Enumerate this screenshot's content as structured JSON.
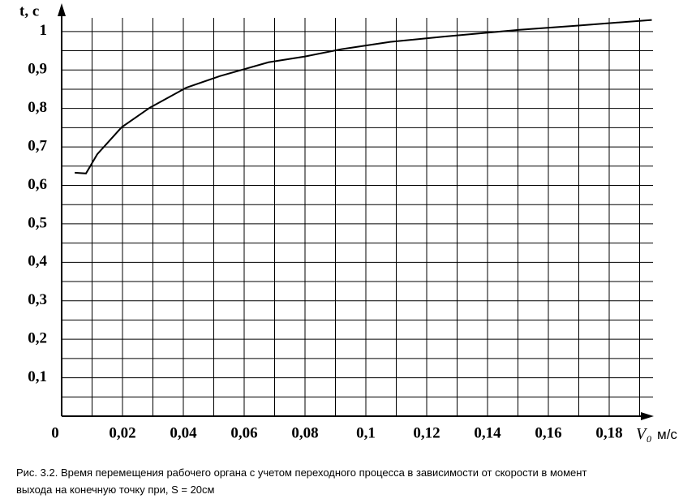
{
  "chart_data": {
    "type": "line",
    "y_label": "t, c",
    "x_label_symbol": "V",
    "x_label_subscript": "0",
    "x_label_unit": "м/с",
    "caption": [
      "Рис. 3.2. Время перемещения рабочего органа с учетом переходного процесса в зависимости от скорости в момент",
      "выхода на конечную точку при, S = 20см"
    ],
    "x": [
      0.0043,
      0.008,
      0.0117,
      0.0197,
      0.029,
      0.041,
      0.052,
      0.068,
      0.08,
      0.092,
      0.108,
      0.126,
      0.15,
      0.169,
      0.194
    ],
    "series": [
      {
        "color": "#000000",
        "values": [
          0.633,
          0.631,
          0.681,
          0.751,
          0.802,
          0.854,
          0.884,
          0.92,
          0.935,
          0.954,
          0.973,
          0.987,
          1.004,
          1.015,
          1.03
        ]
      }
    ],
    "xlim": [
      0,
      0.194
    ],
    "ylim": [
      0,
      1.065
    ],
    "xticks": [
      0,
      {
        "value": 0.02,
        "label": "0,02"
      },
      {
        "value": 0.04,
        "label": "0,04"
      },
      {
        "value": 0.06,
        "label": "0,06"
      },
      {
        "value": 0.08,
        "label": "0,08"
      },
      {
        "value": 0.1,
        "label": "0,1"
      },
      {
        "value": 0.12,
        "label": "0,12"
      },
      {
        "value": 0.14,
        "label": "0,14"
      },
      {
        "value": 0.16,
        "label": "0,16"
      },
      {
        "value": 0.18,
        "label": "0,18"
      }
    ],
    "yticks": [
      {
        "value": 0.1,
        "label": "0,1"
      },
      {
        "value": 0.2,
        "label": "0,2"
      },
      {
        "value": 0.3,
        "label": "0,3"
      },
      {
        "value": 0.4,
        "label": "0,4"
      },
      {
        "value": 0.5,
        "label": "0,5"
      },
      {
        "value": 0.6,
        "label": "0,6"
      },
      {
        "value": 0.7,
        "label": "0,7"
      },
      {
        "value": 0.8,
        "label": "0,8"
      },
      {
        "value": 0.9,
        "label": "0,9"
      },
      1
    ],
    "x_grid": [
      0.01,
      0.02,
      0.03,
      0.04,
      0.05,
      0.06,
      0.07,
      0.08,
      0.09,
      0.1,
      0.11,
      0.12,
      0.13,
      0.14,
      0.15,
      0.16,
      0.17,
      0.18,
      0.19
    ],
    "y_grid": [
      0.05,
      0.1,
      0.15,
      0.2,
      0.25,
      0.3,
      0.35,
      0.4,
      0.45,
      0.5,
      0.55,
      0.6,
      0.65,
      0.7,
      0.75,
      0.8,
      0.85,
      0.9,
      0.95,
      1
    ],
    "grid": true
  }
}
